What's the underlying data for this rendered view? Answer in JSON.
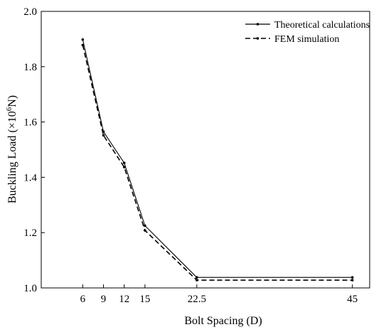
{
  "chart_data": {
    "type": "line",
    "x": [
      6,
      9,
      12,
      15,
      22.5,
      45
    ],
    "x_ticks": [
      "6",
      "9",
      "12",
      "15",
      "22.5",
      "45"
    ],
    "y_ticks": [
      "1.0",
      "1.2",
      "1.4",
      "1.6",
      "1.8",
      "2.0"
    ],
    "xlim": [
      0,
      47.5
    ],
    "ylim": [
      1.0,
      2.0
    ],
    "xlabel": "Bolt Spacing (D)",
    "ylabel": {
      "prefix": "Buckling Load (×10",
      "sup": "6",
      "suffix": "N)"
    },
    "legend_position": "top-right",
    "grid": false,
    "series": [
      {
        "name": "Theoretical calculations",
        "style": "solid",
        "color": "#000000",
        "values": [
          1.898,
          1.565,
          1.452,
          1.225,
          1.038,
          1.038
        ]
      },
      {
        "name": "FEM simulation",
        "style": "dashed",
        "color": "#000000",
        "values": [
          1.878,
          1.552,
          1.437,
          1.208,
          1.028,
          1.028
        ]
      }
    ]
  }
}
